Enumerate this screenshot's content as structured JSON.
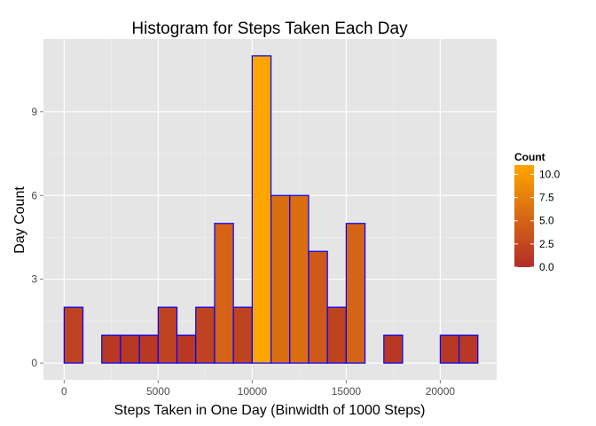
{
  "chart_data": {
    "type": "bar",
    "title": "Histogram for Steps Taken Each Day",
    "xlabel": "Steps Taken in One Day (Binwidth of 1000 Steps)",
    "ylabel": "Day Count",
    "xlim": [
      -1100,
      23000
    ],
    "ylim": [
      -0.6,
      11.6
    ],
    "xticks": [
      0,
      5000,
      10000,
      15000,
      20000
    ],
    "yticks": [
      0,
      3,
      6,
      9
    ],
    "grid": true,
    "binwidth": 1000,
    "bins": [
      {
        "x_start": 0,
        "count": 2
      },
      {
        "x_start": 1000,
        "count": 0
      },
      {
        "x_start": 2000,
        "count": 1
      },
      {
        "x_start": 3000,
        "count": 1
      },
      {
        "x_start": 4000,
        "count": 1
      },
      {
        "x_start": 5000,
        "count": 2
      },
      {
        "x_start": 6000,
        "count": 1
      },
      {
        "x_start": 7000,
        "count": 2
      },
      {
        "x_start": 8000,
        "count": 5
      },
      {
        "x_start": 9000,
        "count": 2
      },
      {
        "x_start": 10000,
        "count": 11
      },
      {
        "x_start": 11000,
        "count": 6
      },
      {
        "x_start": 12000,
        "count": 6
      },
      {
        "x_start": 13000,
        "count": 4
      },
      {
        "x_start": 14000,
        "count": 2
      },
      {
        "x_start": 15000,
        "count": 5
      },
      {
        "x_start": 16000,
        "count": 0
      },
      {
        "x_start": 17000,
        "count": 1
      },
      {
        "x_start": 18000,
        "count": 0
      },
      {
        "x_start": 19000,
        "count": 0
      },
      {
        "x_start": 20000,
        "count": 1
      },
      {
        "x_start": 21000,
        "count": 1
      }
    ],
    "legend": {
      "title": "Count",
      "position": "right",
      "ticks": [
        "0.0",
        "2.5",
        "5.0",
        "7.5",
        "10.0"
      ],
      "tick_values": [
        0,
        2.5,
        5,
        7.5,
        10
      ],
      "range": [
        0,
        11
      ],
      "low_color": "#b22d28",
      "high_color": "#ffa500"
    },
    "colors": {
      "panel_background": "#e5e5e5",
      "grid_major": "#ffffff",
      "grid_minor": "#f2f2f2",
      "bar_outline": "#0000ff"
    }
  }
}
